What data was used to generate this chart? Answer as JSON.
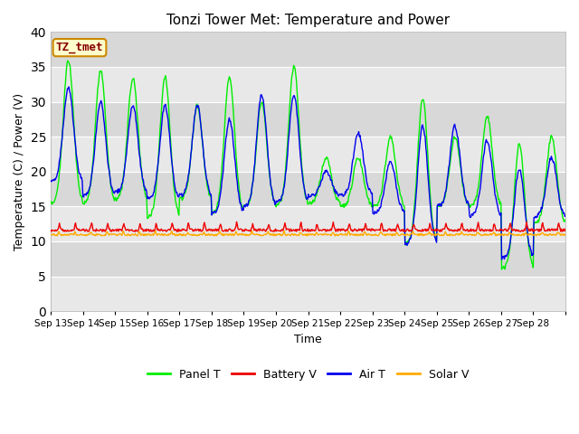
{
  "title": "Tonzi Tower Met: Temperature and Power",
  "xlabel": "Time",
  "ylabel": "Temperature (C) / Power (V)",
  "ylim": [
    0,
    40
  ],
  "yticks": [
    0,
    5,
    10,
    15,
    20,
    25,
    30,
    35,
    40
  ],
  "x_labels": [
    "Sep 13",
    "Sep 14",
    "Sep 15",
    "Sep 16",
    "Sep 17",
    "Sep 18",
    "Sep 19",
    "Sep 20",
    "Sep 21",
    "Sep 22",
    "Sep 23",
    "Sep 24",
    "Sep 25",
    "Sep 26",
    "Sep 27",
    "Sep 28"
  ],
  "annotation_text": "TZ_tmet",
  "annotation_facecolor": "#ffffcc",
  "annotation_edgecolor": "#cc8800",
  "annotation_textcolor": "#880000",
  "bg_color_light": "#e8e8e8",
  "bg_color_dark": "#d8d8d8",
  "panel_t_color": "#00ee00",
  "battery_v_color": "#ee0000",
  "air_t_color": "#0000ee",
  "solar_v_color": "#ffaa00",
  "legend_labels": [
    "Panel T",
    "Battery V",
    "Air T",
    "Solar V"
  ],
  "panel_t_peaks": [
    15.5,
    36.0,
    15.5,
    34.5,
    16.0,
    33.5,
    13.5,
    33.5,
    16.0,
    29.5,
    14.0,
    33.5,
    15.0,
    30.0,
    15.0,
    35.0,
    15.5,
    22.0,
    15.0,
    22.0,
    15.0,
    25.0,
    9.5,
    30.5,
    15.0,
    25.0,
    15.0,
    28.0,
    6.0,
    24.0,
    12.5,
    25.0
  ],
  "air_t_peaks": [
    18.5,
    32.0,
    16.5,
    30.0,
    17.0,
    29.5,
    16.0,
    29.5,
    16.5,
    29.5,
    14.0,
    27.5,
    15.0,
    31.0,
    15.5,
    31.0,
    16.5,
    20.0,
    16.5,
    25.5,
    14.0,
    21.5,
    9.5,
    26.5,
    15.0,
    26.5,
    13.5,
    24.5,
    7.5,
    20.5,
    13.5,
    22.0
  ]
}
